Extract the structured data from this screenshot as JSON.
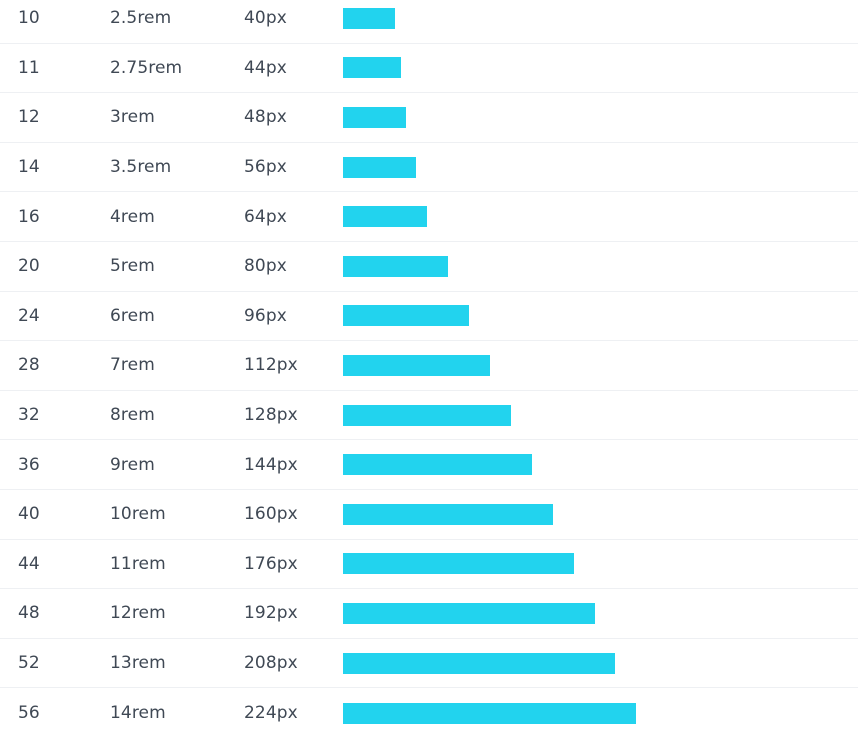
{
  "spacing_scale": {
    "bar_color": "#22d3ee",
    "rows": [
      {
        "name": "10",
        "size": "2.5rem",
        "pixels": "40px",
        "value": 40
      },
      {
        "name": "11",
        "size": "2.75rem",
        "pixels": "44px",
        "value": 44
      },
      {
        "name": "12",
        "size": "3rem",
        "pixels": "48px",
        "value": 48
      },
      {
        "name": "14",
        "size": "3.5rem",
        "pixels": "56px",
        "value": 56
      },
      {
        "name": "16",
        "size": "4rem",
        "pixels": "64px",
        "value": 64
      },
      {
        "name": "20",
        "size": "5rem",
        "pixels": "80px",
        "value": 80
      },
      {
        "name": "24",
        "size": "6rem",
        "pixels": "96px",
        "value": 96
      },
      {
        "name": "28",
        "size": "7rem",
        "pixels": "112px",
        "value": 112
      },
      {
        "name": "32",
        "size": "8rem",
        "pixels": "128px",
        "value": 128
      },
      {
        "name": "36",
        "size": "9rem",
        "pixels": "144px",
        "value": 144
      },
      {
        "name": "40",
        "size": "10rem",
        "pixels": "160px",
        "value": 160
      },
      {
        "name": "44",
        "size": "11rem",
        "pixels": "176px",
        "value": 176
      },
      {
        "name": "48",
        "size": "12rem",
        "pixels": "192px",
        "value": 192
      },
      {
        "name": "52",
        "size": "13rem",
        "pixels": "208px",
        "value": 208
      },
      {
        "name": "56",
        "size": "14rem",
        "pixels": "224px",
        "value": 224
      }
    ]
  }
}
